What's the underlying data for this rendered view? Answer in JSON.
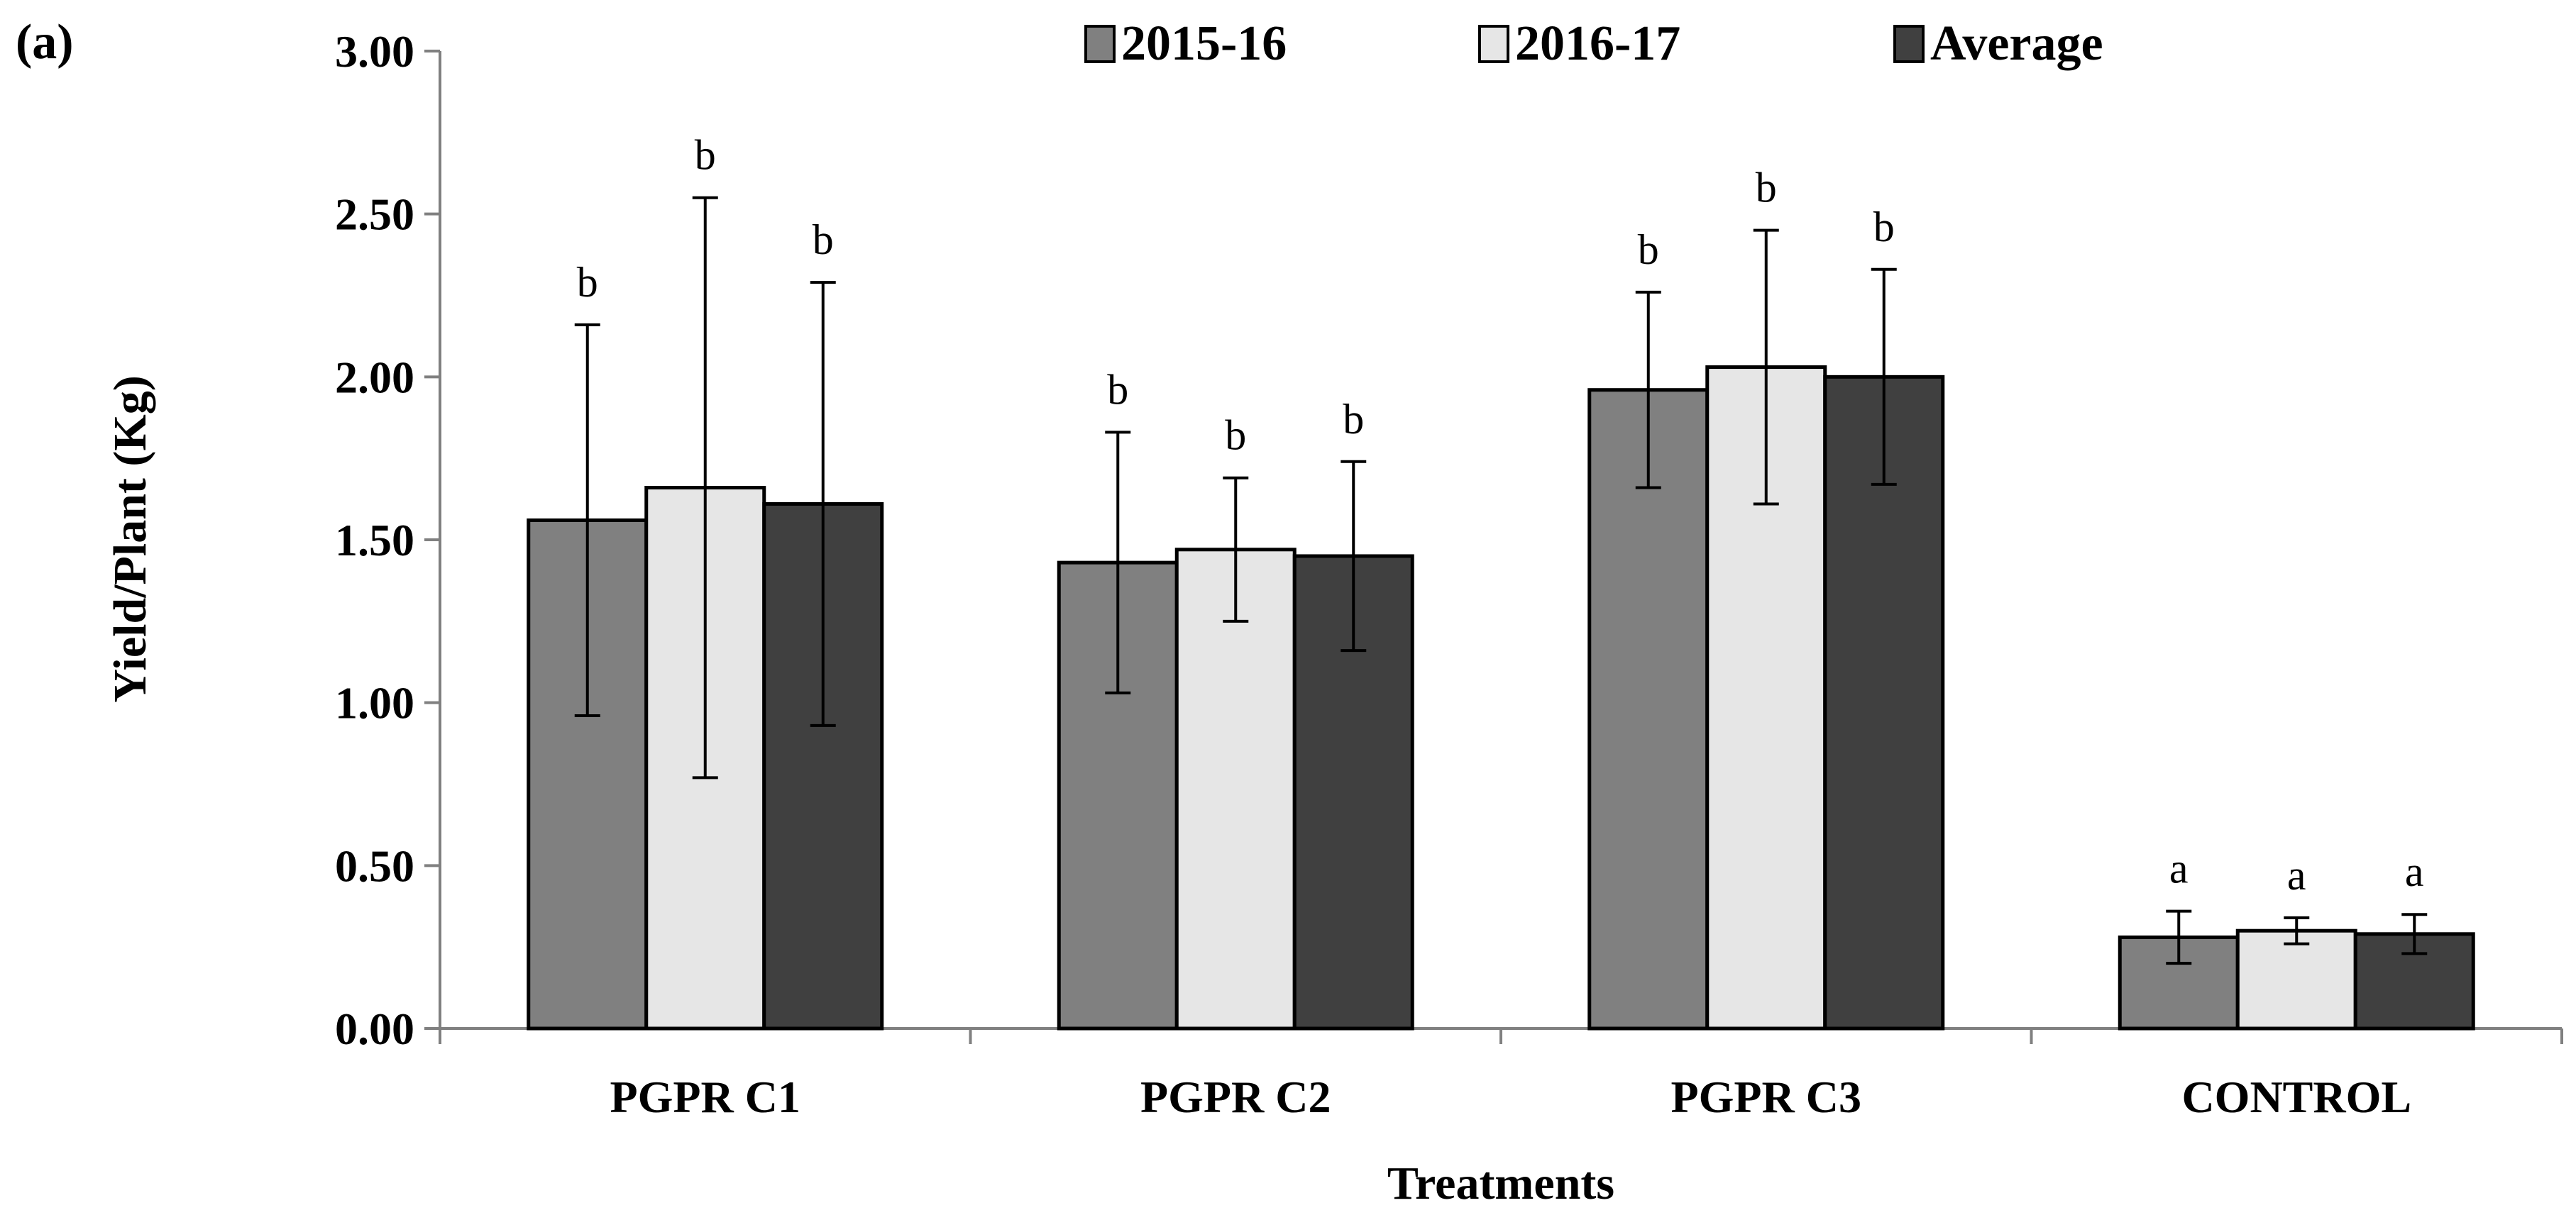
{
  "panel_label": "(a)",
  "chart_data": {
    "type": "bar",
    "title": "",
    "xlabel": "Treatments",
    "ylabel": "Yield/Plant (Kg)",
    "ylim": [
      0,
      3
    ],
    "yticks": [
      "0.00",
      "0.50",
      "1.00",
      "1.50",
      "2.00",
      "2.50",
      "3.00"
    ],
    "grid": false,
    "legend_position": "top-center",
    "categories": [
      "PGPR C1",
      "PGPR C2",
      "PGPR C3",
      "CONTROL"
    ],
    "series": [
      {
        "name": "2015-16",
        "color": "#808080",
        "values": [
          1.56,
          1.43,
          1.96,
          0.28
        ],
        "errors": [
          0.6,
          0.4,
          0.3,
          0.08
        ],
        "letters": [
          "b",
          "b",
          "b",
          "a"
        ]
      },
      {
        "name": "2016-17",
        "color": "#e6e6e6",
        "values": [
          1.66,
          1.47,
          2.03,
          0.3
        ],
        "errors": [
          0.89,
          0.22,
          0.42,
          0.04
        ],
        "letters": [
          "b",
          "b",
          "b",
          "a"
        ]
      },
      {
        "name": "Average",
        "color": "#404040",
        "values": [
          1.61,
          1.45,
          2.0,
          0.29
        ],
        "errors": [
          0.68,
          0.29,
          0.33,
          0.06
        ],
        "letters": [
          "b",
          "b",
          "b",
          "a"
        ]
      }
    ]
  }
}
